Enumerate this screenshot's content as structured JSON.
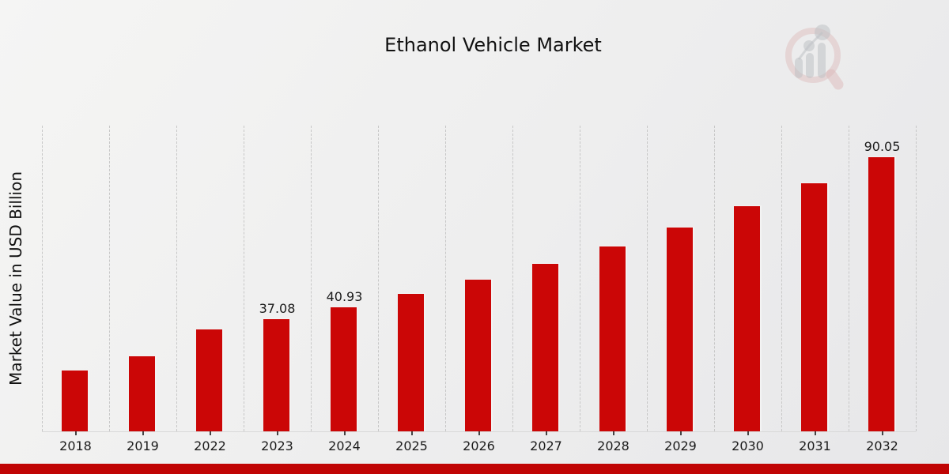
{
  "page": {
    "title": "Ethanol Vehicle Market"
  },
  "chart_data": {
    "type": "bar",
    "title": "Ethanol Vehicle Market",
    "xlabel": "",
    "ylabel": "Market Value in USD Billion",
    "categories": [
      "2018",
      "2019",
      "2022",
      "2023",
      "2024",
      "2025",
      "2026",
      "2027",
      "2028",
      "2029",
      "2030",
      "2031",
      "2032"
    ],
    "values": [
      20.1,
      24.9,
      33.6,
      37.08,
      40.93,
      45.17,
      49.84,
      55.0,
      60.69,
      66.97,
      73.9,
      81.55,
      90.05
    ],
    "value_labels_shown": [
      "",
      "",
      "",
      "37.08",
      "40.93",
      "",
      "",
      "",
      "",
      "",
      "",
      "",
      "90.05"
    ],
    "bar_color": "#cb0606",
    "ylim": [
      0,
      100.1
    ],
    "grid": "vertical-dashed",
    "gridline_color": "#c7c7c7",
    "legend": "none",
    "background": "light-gray-gradient"
  },
  "watermark": {
    "icon": "magnifier-bar-chart-logo",
    "ring_color": "#cf8f8f",
    "bars_color": "#9aa0a6"
  },
  "footer": {
    "accent_bar_color": "#c00404"
  }
}
